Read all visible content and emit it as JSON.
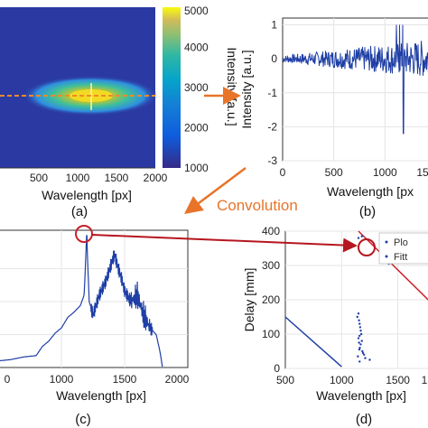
{
  "figure": {
    "convolution_label": "Convolution",
    "panel_labels": [
      "(a)",
      "(b)",
      "(c)",
      "(d)"
    ]
  },
  "colors": {
    "blue_line": "#1f3fa6",
    "red_line": "#cc1f2a",
    "orange_arrow": "#e8742a",
    "dark_red_arrow": "#b5161f",
    "heatmap_bg": "#2b3aa3"
  },
  "chart_data": [
    {
      "type": "heatmap",
      "panel": "(a)",
      "xlabel": "Wavelength [px]",
      "x_ticks": [
        500,
        1000,
        1500,
        2000
      ],
      "xlim": [
        0,
        2000
      ],
      "colorbar_label": "Intensity [a.u.]",
      "colorbar_ticks": [
        1000,
        2000,
        3000,
        4000,
        5000
      ],
      "colorbar_range": [
        1000,
        5000
      ],
      "colormap": "parula",
      "peak_x": 1200
    },
    {
      "type": "line",
      "panel": "(b)",
      "xlabel": "Wavelength [px",
      "ylabel": "Intensity [a.u.]",
      "x_ticks": [
        "0",
        "500",
        "1000",
        "15"
      ],
      "y_ticks": [
        1,
        0,
        -1,
        -2,
        -3
      ],
      "xlim": [
        0,
        1500
      ],
      "ylim": [
        -3,
        1.2
      ],
      "dip": {
        "x": 1180,
        "y": -2.2
      },
      "grid": true
    },
    {
      "type": "line",
      "panel": "(c)",
      "xlabel": "Wavelength [px]",
      "x_ticks": [
        1000,
        1500,
        2000
      ],
      "xlim": [
        500,
        2000
      ],
      "peak": {
        "x": 1200,
        "y": 1.0
      },
      "series": [
        {
          "x": [
            500,
            600,
            700,
            800,
            850,
            900,
            950,
            1000,
            1050,
            1100,
            1150,
            1180,
            1200,
            1220,
            1250,
            1300,
            1350,
            1400,
            1420,
            1450,
            1480,
            1500,
            1550,
            1600,
            1650,
            1700,
            1750,
            1780,
            1800
          ],
          "y": [
            0.05,
            0.06,
            0.08,
            0.09,
            0.16,
            0.2,
            0.26,
            0.3,
            0.38,
            0.42,
            0.47,
            0.55,
            1.0,
            0.5,
            0.4,
            0.55,
            0.65,
            0.8,
            0.86,
            0.75,
            0.66,
            0.58,
            0.5,
            0.55,
            0.4,
            0.3,
            0.25,
            0.12,
            0.0
          ]
        }
      ],
      "grid": true
    },
    {
      "type": "scatter",
      "panel": "(d)",
      "xlabel": "Wavelength [px]",
      "ylabel": "Delay [mm]",
      "x_ticks": [
        "500",
        "1000",
        "1500",
        "1"
      ],
      "y_ticks": [
        400,
        300,
        200,
        100,
        0
      ],
      "xlim": [
        500,
        1800
      ],
      "ylim": [
        0,
        400
      ],
      "legend": [
        "Plo",
        "Fitt"
      ],
      "legend_position": "top-right",
      "red_fit": {
        "x": [
          1150,
          1800
        ],
        "y": [
          400,
          190
        ]
      },
      "blue_fit": {
        "x": [
          500,
          1000
        ],
        "y": [
          150,
          5
        ]
      },
      "points": {
        "x": [
          1140,
          1150,
          1155,
          1160,
          1165,
          1170,
          1175,
          1160,
          1150,
          1180,
          1155,
          1170,
          1162,
          1158,
          1185,
          1190,
          1200,
          1145,
          1210,
          1250,
          1160,
          1400,
          1420,
          1150,
          1180
        ],
        "y": [
          150,
          160,
          140,
          130,
          120,
          110,
          100,
          95,
          88,
          80,
          75,
          70,
          60,
          55,
          50,
          45,
          40,
          35,
          30,
          25,
          20,
          310,
          305,
          380,
          385
        ]
      },
      "marker": {
        "x": 1180,
        "y": 305
      }
    }
  ]
}
